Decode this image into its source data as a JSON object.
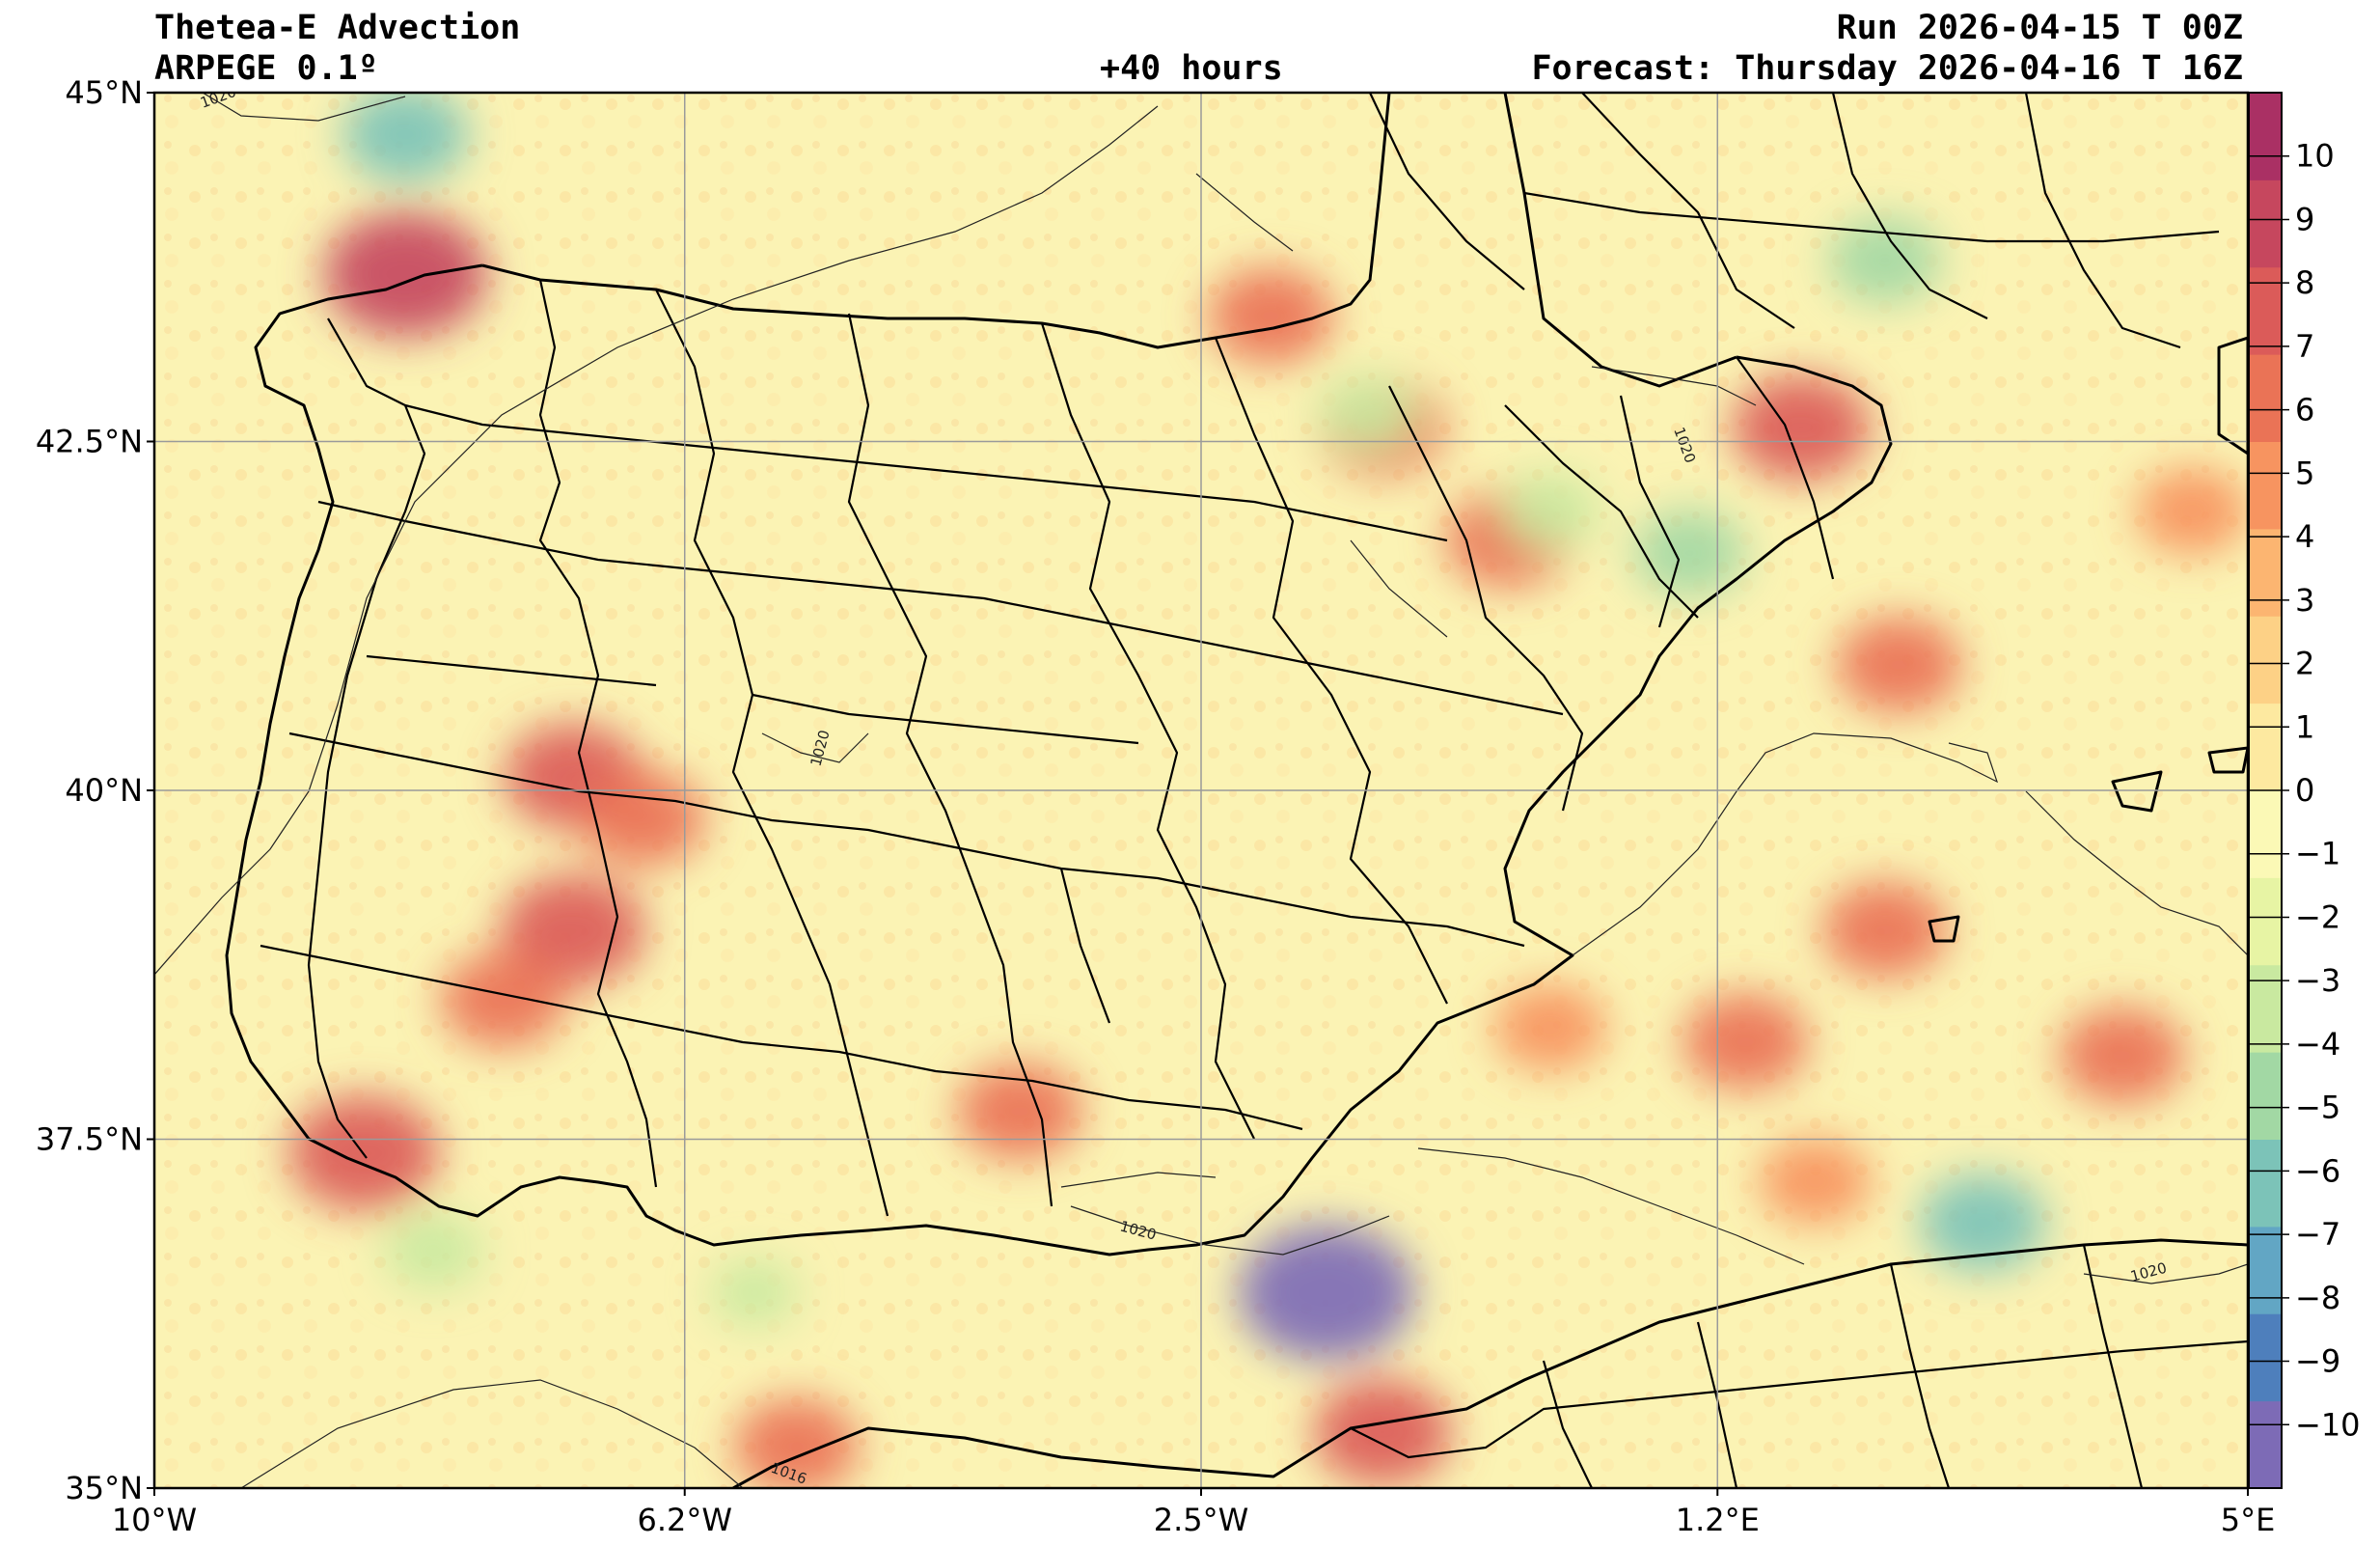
{
  "header": {
    "title": "Thetea-E Advection",
    "model": "ARPEGE 0.1º",
    "lead": "+40 hours",
    "run": "Run 2026-04-15 T 00Z",
    "forecast": "Forecast: Thursday 2026-04-16 T 16Z"
  },
  "chart_data": {
    "type": "heatmap",
    "title": "Thetea-E Advection",
    "x_range": [
      -10,
      5
    ],
    "y_range": [
      35,
      45
    ],
    "x_ticks": [
      {
        "value": -10,
        "label": "10°W"
      },
      {
        "value": -6.2,
        "label": "6.2°W"
      },
      {
        "value": -2.5,
        "label": "2.5°W"
      },
      {
        "value": 1.2,
        "label": "1.2°E"
      },
      {
        "value": 5,
        "label": "5°E"
      }
    ],
    "y_ticks": [
      {
        "value": 35,
        "label": "35°N"
      },
      {
        "value": 37.5,
        "label": "37.5°N"
      },
      {
        "value": 40,
        "label": "40°N"
      },
      {
        "value": 42.5,
        "label": "42.5°N"
      },
      {
        "value": 45,
        "label": "45°N"
      }
    ],
    "grid": true,
    "colorbar": {
      "range": [
        -11,
        11
      ],
      "ticks": [
        10,
        9,
        8,
        7,
        6,
        5,
        4,
        3,
        2,
        1,
        0,
        -1,
        -2,
        -3,
        -4,
        -5,
        -6,
        -7,
        -8,
        -9,
        -10
      ],
      "tick_labels": [
        "10",
        "9",
        "8",
        "7",
        "6",
        "5",
        "4",
        "3",
        "2",
        "1",
        "0",
        "−1",
        "−2",
        "−3",
        "−4",
        "−5",
        "−6",
        "−7",
        "−8",
        "−9",
        "−10"
      ],
      "colors": [
        "#7d6bb6",
        "#4e7fbc",
        "#62a6c4",
        "#7cc3b8",
        "#a2d8a4",
        "#c9e9a0",
        "#e7f4a4",
        "#fbf9b6",
        "#fde9a0",
        "#fdd186",
        "#fcb571",
        "#f79460",
        "#ea7356",
        "#db5b59",
        "#c6475e",
        "#aa3064"
      ],
      "placement": "right"
    },
    "isobar_labels": [
      "1020",
      "1020",
      "1020",
      "1020",
      "1016",
      "1020"
    ],
    "field_blobs": [
      {
        "lon": -8.2,
        "lat": 43.7,
        "value": 9
      },
      {
        "lon": -7.0,
        "lat": 40.1,
        "value": 7
      },
      {
        "lon": -7.0,
        "lat": 39.0,
        "value": 7.5
      },
      {
        "lon": -8.5,
        "lat": 37.4,
        "value": 8
      },
      {
        "lon": -7.5,
        "lat": 38.5,
        "value": 6
      },
      {
        "lon": -6.5,
        "lat": 39.8,
        "value": 6
      },
      {
        "lon": -2.0,
        "lat": 43.4,
        "value": 6
      },
      {
        "lon": -1.2,
        "lat": 42.6,
        "value": 6
      },
      {
        "lon": -0.3,
        "lat": 41.8,
        "value": 6
      },
      {
        "lon": 1.8,
        "lat": 42.6,
        "value": 7
      },
      {
        "lon": 2.5,
        "lat": 40.9,
        "value": 6
      },
      {
        "lon": 2.4,
        "lat": 39.0,
        "value": 6
      },
      {
        "lon": 1.4,
        "lat": 38.2,
        "value": 6
      },
      {
        "lon": 0.0,
        "lat": 38.3,
        "value": 5
      },
      {
        "lon": 4.6,
        "lat": 42.0,
        "value": 5
      },
      {
        "lon": 4.1,
        "lat": 38.1,
        "value": 6
      },
      {
        "lon": 1.9,
        "lat": 37.2,
        "value": 5
      },
      {
        "lon": -3.8,
        "lat": 37.7,
        "value": 6
      },
      {
        "lon": -5.4,
        "lat": 35.3,
        "value": 6
      },
      {
        "lon": -1.2,
        "lat": 35.4,
        "value": 7
      },
      {
        "lon": -8.2,
        "lat": 44.7,
        "value": -6
      },
      {
        "lon": -1.6,
        "lat": 36.4,
        "value": -10
      },
      {
        "lon": -1.3,
        "lat": 42.7,
        "value": -4
      },
      {
        "lon": 1.0,
        "lat": 41.7,
        "value": -5
      },
      {
        "lon": 0.0,
        "lat": 42.0,
        "value": -4
      },
      {
        "lon": 3.1,
        "lat": 36.9,
        "value": -6
      },
      {
        "lon": 2.4,
        "lat": 43.8,
        "value": -5
      },
      {
        "lon": -8.0,
        "lat": 36.7,
        "value": -4
      },
      {
        "lon": -5.7,
        "lat": 36.4,
        "value": -3
      }
    ]
  }
}
